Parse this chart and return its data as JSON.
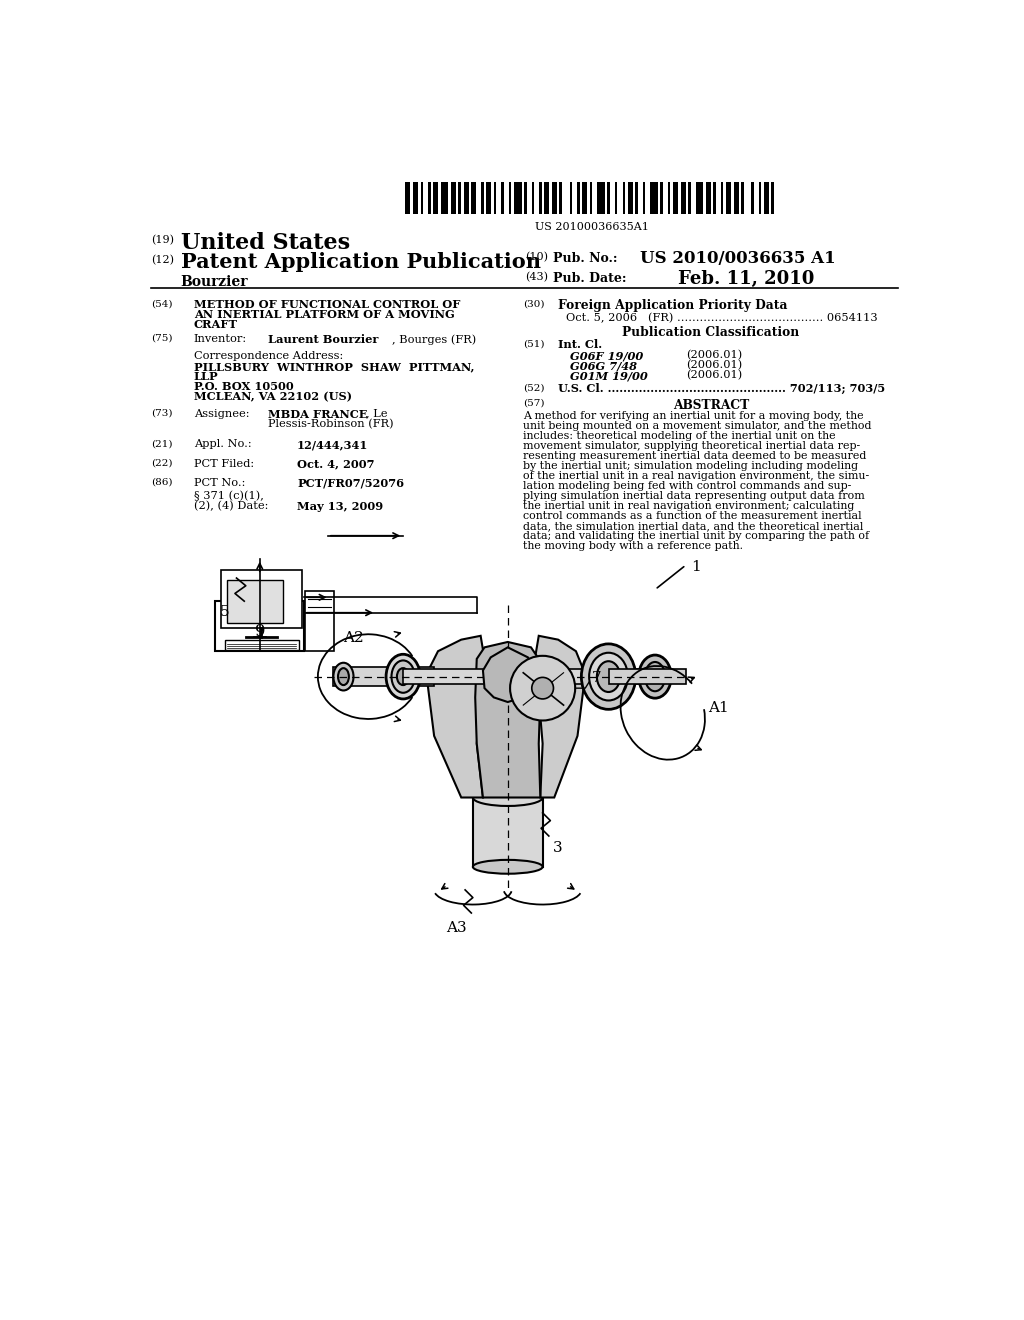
{
  "bg_color": "#ffffff",
  "barcode_text": "US 20100036635A1",
  "patent_number": "US 2010/0036635 A1",
  "pub_date": "Feb. 11, 2010",
  "country": "United States",
  "kind": "Patent Application Publication",
  "inventor_label": "Bourzier",
  "appl_no_21": "12/444,341",
  "pct_filed_22": "Oct. 4, 2007",
  "pct_no_86": "PCT/FR07/52076",
  "foreign_app_30": "Oct. 5, 2006   (FR) ....................................... 0654113",
  "pub_class_header": "Publication Classification",
  "int_cl_51": "Int. Cl.",
  "classifications": [
    [
      "G06F 19/00",
      "(2006.01)"
    ],
    [
      "G06G 7/48",
      "(2006.01)"
    ],
    [
      "G01M 19/00",
      "(2006.01)"
    ]
  ],
  "us_cl_52": "U.S. Cl. .............................................. 702/113; 703/5",
  "abstract_lines": [
    "A method for verifying an inertial unit for a moving body, the",
    "unit being mounted on a movement simulator, and the method",
    "includes: theoretical modeling of the inertial unit on the",
    "movement simulator, supplying theoretical inertial data rep-",
    "resenting measurement inertial data deemed to be measured",
    "by the inertial unit; simulation modeling including modeling",
    "of the inertial unit in a real navigation environment, the simu-",
    "lation modeling being fed with control commands and sup-",
    "plying simulation inertial data representing output data from",
    "the inertial unit in real navigation environment; calculating",
    "control commands as a function of the measurement inertial",
    "data, the simulation inertial data, and the theoretical inertial",
    "data; and validating the inertial unit by comparing the path of",
    "the moving body with a reference path."
  ]
}
